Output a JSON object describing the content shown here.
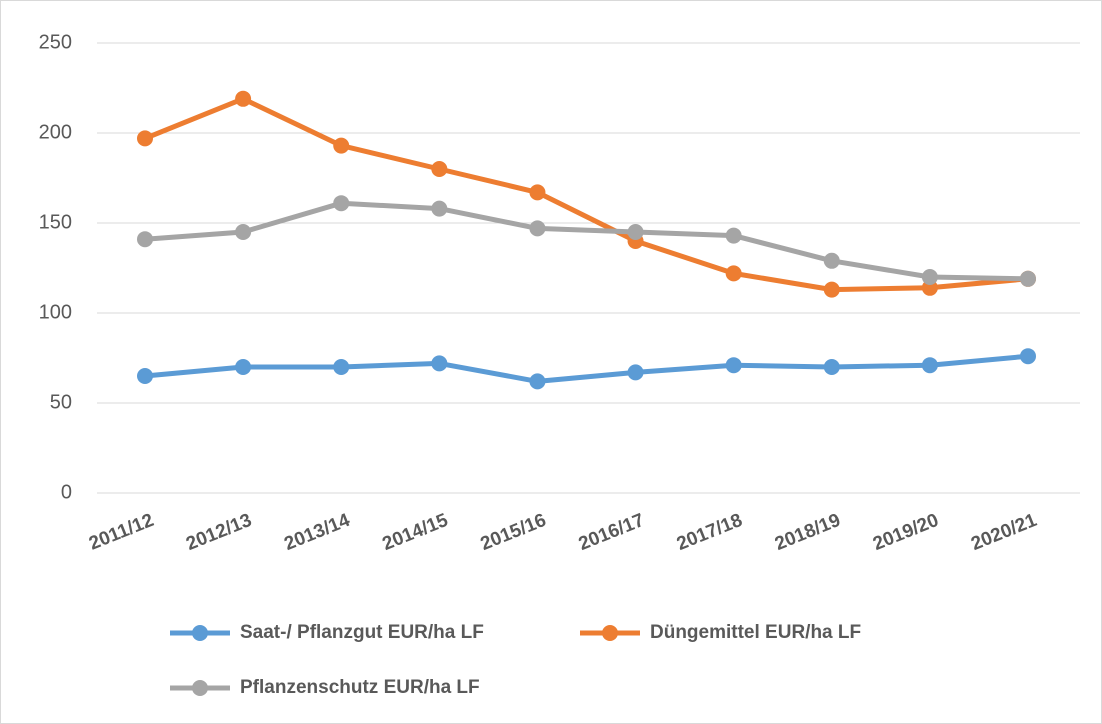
{
  "chart_data": {
    "type": "line",
    "categories": [
      "2011/12",
      "2012/13",
      "2013/14",
      "2014/15",
      "2015/16",
      "2016/17",
      "2017/18",
      "2018/19",
      "2019/20",
      "2020/21"
    ],
    "series": [
      {
        "name": "Saat-/ Pflanzgut EUR/ha LF",
        "color": "#5b9bd5",
        "values": [
          65,
          70,
          70,
          72,
          62,
          67,
          71,
          70,
          71,
          76
        ]
      },
      {
        "name": "Düngemittel EUR/ha LF",
        "color": "#ed7d31",
        "values": [
          197,
          219,
          193,
          180,
          167,
          140,
          122,
          113,
          114,
          119
        ]
      },
      {
        "name": "Pflanzenschutz EUR/ha LF",
        "color": "#a5a5a5",
        "values": [
          141,
          145,
          161,
          158,
          147,
          145,
          143,
          129,
          120,
          119
        ]
      }
    ],
    "ylim": [
      0,
      250
    ],
    "yticks": [
      0,
      50,
      100,
      150,
      200,
      250
    ],
    "grid": true
  }
}
